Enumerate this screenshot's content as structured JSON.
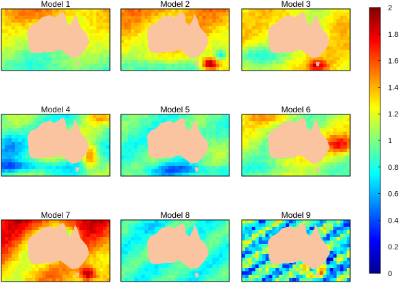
{
  "chart_data": {
    "type": "heatmap",
    "layout": "3x3 small multiples",
    "panels": [
      {
        "title": "Model 1",
        "dominant_range": [
          0.9,
          1.4
        ],
        "features": [
          "high values north and northwest",
          "low values south"
        ]
      },
      {
        "title": "Model 2",
        "dominant_range": [
          1.0,
          1.6
        ],
        "features": [
          "strong maximum off southeast coast (about 2)",
          "low values south"
        ]
      },
      {
        "title": "Model 3",
        "dominant_range": [
          1.0,
          1.5
        ],
        "features": [
          "maximum south of the continent",
          "mostly yellow-orange background"
        ]
      },
      {
        "title": "Model 4",
        "dominant_range": [
          0.5,
          1.3
        ],
        "features": [
          "maximum off southeast coast",
          "blue minima in west and south"
        ]
      },
      {
        "title": "Model 5",
        "dominant_range": [
          0.6,
          1.2
        ],
        "features": [
          "blue minimum south",
          "green background"
        ]
      },
      {
        "title": "Model 6",
        "dominant_range": [
          0.9,
          1.4
        ],
        "features": [
          "red band east",
          "yellow north"
        ]
      },
      {
        "title": "Model 7",
        "dominant_range": [
          1.1,
          1.9
        ],
        "features": [
          "red north and west",
          "maximum southeast"
        ]
      },
      {
        "title": "Model 8",
        "dominant_range": [
          0.6,
          1.1
        ],
        "features": [
          "near-uniform green and blue field"
        ]
      },
      {
        "title": "Model 9",
        "dominant_range": [
          0.2,
          1.9
        ],
        "features": [
          "noisy field",
          "strong red and blue extremes southeast"
        ]
      }
    ],
    "colorbar": {
      "min": 0,
      "max": 2,
      "ticks": [
        "0",
        "0.2",
        "0.4",
        "0.6",
        "0.8",
        "1",
        "1.2",
        "1.4",
        "1.6",
        "1.8",
        "2"
      ],
      "colormap": "jet"
    },
    "land_color": "#f9c49f",
    "frame_color": "#000000"
  }
}
